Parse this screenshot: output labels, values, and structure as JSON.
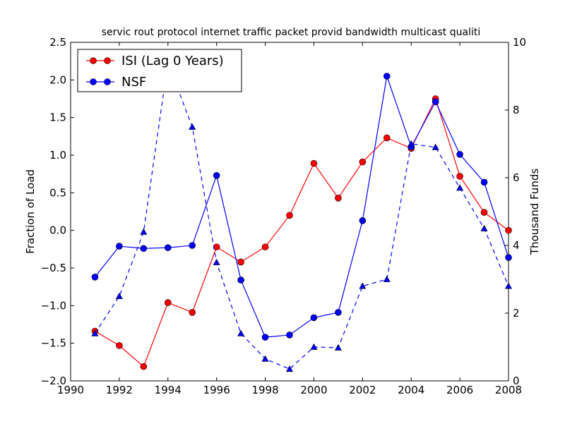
{
  "chart_data": {
    "type": "line",
    "title": "servic rout protocol internet traffic packet provid bandwidth multicast qualiti",
    "xlabel": "",
    "ylabel": "Fraction of Load",
    "y2label": "Thousand Funds",
    "xlim": [
      1990,
      2008
    ],
    "ylim": [
      -2.0,
      2.5
    ],
    "y2lim": [
      0,
      10
    ],
    "xticks": [
      "1990",
      "1992",
      "1994",
      "1996",
      "1998",
      "2000",
      "2002",
      "2004",
      "2006",
      "2008"
    ],
    "yticks": [
      "−2.0",
      "−1.5",
      "−1.0",
      "−0.5",
      "0.0",
      "0.5",
      "1.0",
      "1.5",
      "2.0",
      "2.5"
    ],
    "y2ticks": [
      "0",
      "2",
      "4",
      "6",
      "8",
      "10"
    ],
    "grid": false,
    "legend_position": "top-left",
    "series": [
      {
        "name": "ISI (Lag 0 Years)",
        "axis": "left",
        "color": "#ff0000",
        "marker": "circle",
        "line": "solid",
        "x": [
          1991,
          1992,
          1993,
          1994,
          1995,
          1996,
          1997,
          1998,
          1999,
          2000,
          2001,
          2002,
          2003,
          2004,
          2005,
          2006,
          2007,
          2008
        ],
        "values": [
          -1.34,
          -1.53,
          -1.81,
          -0.96,
          -1.09,
          -0.22,
          -0.42,
          -0.22,
          0.2,
          0.89,
          0.43,
          0.91,
          1.23,
          1.09,
          1.75,
          0.72,
          0.24,
          0.0
        ]
      },
      {
        "name": "NSF",
        "axis": "left",
        "color": "#0000ff",
        "marker": "circle",
        "line": "solid",
        "x": [
          1991,
          1992,
          1993,
          1994,
          1995,
          1996,
          1997,
          1998,
          1999,
          2000,
          2001,
          2002,
          2003,
          2004,
          2005,
          2006,
          2007,
          2008
        ],
        "values": [
          -0.62,
          -0.21,
          -0.24,
          -0.23,
          -0.2,
          0.73,
          -0.66,
          -1.42,
          -1.39,
          -1.16,
          -1.09,
          0.13,
          2.05,
          1.11,
          1.71,
          1.01,
          0.64,
          -0.36
        ]
      },
      {
        "name": "",
        "axis": "right",
        "color": "#0000ff",
        "marker": "triangle",
        "line": "dashed",
        "x": [
          1991,
          1992,
          1993,
          1994,
          1995,
          1996,
          1997,
          1998,
          1999,
          2000,
          2001,
          2002,
          2003,
          2004,
          2005,
          2006,
          2007,
          2008
        ],
        "values": [
          1.4,
          2.5,
          4.4,
          9.4,
          7.5,
          3.5,
          1.4,
          0.65,
          0.35,
          1.0,
          0.98,
          2.8,
          3.0,
          7.0,
          6.9,
          5.7,
          4.5,
          2.8
        ]
      }
    ]
  }
}
